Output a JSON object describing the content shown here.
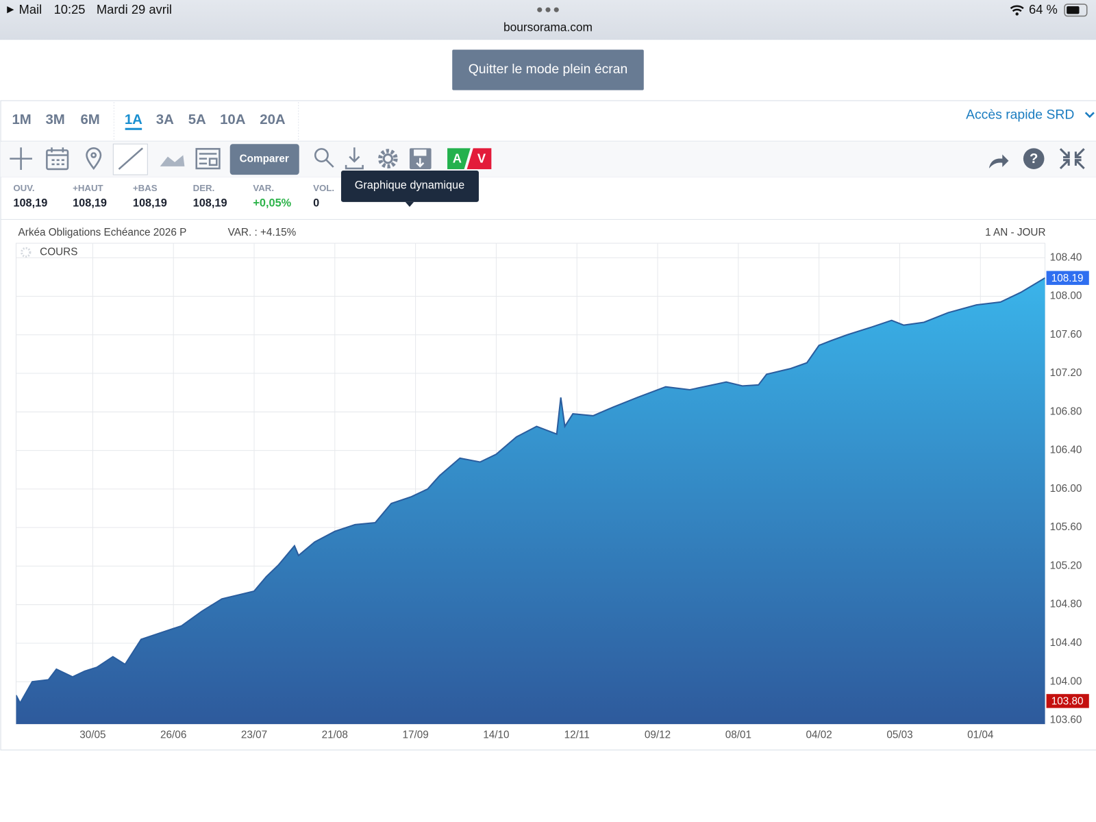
{
  "status_bar": {
    "back_app": "Mail",
    "time": "10:25",
    "date": "Mardi 29 avril",
    "url": "boursorama.com",
    "battery": "64 %"
  },
  "exit_fullscreen_button": "Quitter le mode plein écran",
  "periods": [
    {
      "label": "1M"
    },
    {
      "label": "3M"
    },
    {
      "label": "6M"
    },
    {
      "label": "1A",
      "selected": true
    },
    {
      "label": "3A"
    },
    {
      "label": "5A"
    },
    {
      "label": "10A"
    },
    {
      "label": "20A"
    }
  ],
  "quick_access": "Accès rapide SRD",
  "toolbar": {
    "compare_button": "Comparer",
    "buy": "A",
    "sell": "V",
    "tooltip": "Graphique dynamique"
  },
  "stats": [
    {
      "label": "OUV.",
      "value": "108,19"
    },
    {
      "label": "+HAUT",
      "value": "108,19"
    },
    {
      "label": "+BAS",
      "value": "108,19"
    },
    {
      "label": "DER.",
      "value": "108,19"
    },
    {
      "label": "VAR.",
      "value": "+0,05%",
      "color": "#2db34a"
    },
    {
      "label": "VOL.",
      "value": "0"
    }
  ],
  "chart_data": {
    "type": "area",
    "title": "Arkéa Obligations Echéance 2026 P",
    "subtitle": "VAR. : +4.15%",
    "period_label": "1 AN - JOUR",
    "x": [
      0,
      1,
      4,
      8,
      10,
      14,
      17,
      20,
      24,
      27,
      31,
      36,
      41,
      46,
      51,
      57,
      59,
      62,
      65,
      69,
      70,
      74,
      79,
      84,
      89,
      93,
      98,
      102,
      105,
      110,
      115,
      119,
      124,
      129,
      134,
      135,
      136,
      138,
      143,
      148,
      154,
      161,
      167,
      176,
      180,
      184,
      186,
      192,
      196,
      199,
      202,
      206,
      212,
      217,
      220,
      225,
      231,
      238,
      244,
      249,
      255
    ],
    "series": [
      {
        "name": "COURS",
        "color": "#2a5d9e",
        "fill_top": "#3ab4ea",
        "fill_bottom": "#2e5a9c",
        "values": [
          103.86,
          103.78,
          104.0,
          104.02,
          104.13,
          104.05,
          104.11,
          104.15,
          104.26,
          104.18,
          104.44,
          104.51,
          104.58,
          104.73,
          104.86,
          104.92,
          104.94,
          105.09,
          105.21,
          105.41,
          105.31,
          105.45,
          105.56,
          105.63,
          105.65,
          105.85,
          105.92,
          106.0,
          106.14,
          106.32,
          106.28,
          106.36,
          106.54,
          106.65,
          106.57,
          106.95,
          106.65,
          106.78,
          106.76,
          106.85,
          106.95,
          107.06,
          107.03,
          107.11,
          107.07,
          107.08,
          107.19,
          107.25,
          107.31,
          107.49,
          107.54,
          107.6,
          107.68,
          107.75,
          107.7,
          107.73,
          107.83,
          107.91,
          107.94,
          108.04,
          108.19
        ]
      }
    ],
    "xlim": [
      0,
      255
    ],
    "xticks": [
      {
        "value": 19,
        "label": "30/05"
      },
      {
        "value": 39,
        "label": "26/06"
      },
      {
        "value": 59,
        "label": "23/07"
      },
      {
        "value": 79,
        "label": "21/08"
      },
      {
        "value": 99,
        "label": "17/09"
      },
      {
        "value": 119,
        "label": "14/10"
      },
      {
        "value": 139,
        "label": "12/11"
      },
      {
        "value": 159,
        "label": "09/12"
      },
      {
        "value": 179,
        "label": "08/01"
      },
      {
        "value": 199,
        "label": "04/02"
      },
      {
        "value": 219,
        "label": "05/03"
      },
      {
        "value": 239,
        "label": "01/04"
      }
    ],
    "ylim": [
      103.56,
      108.55
    ],
    "yticks": [
      {
        "value": 103.6,
        "label": "103.60"
      },
      {
        "value": 104.0,
        "label": "104.00"
      },
      {
        "value": 104.4,
        "label": "104.40"
      },
      {
        "value": 104.8,
        "label": "104.80"
      },
      {
        "value": 105.2,
        "label": "105.20"
      },
      {
        "value": 105.6,
        "label": "105.60"
      },
      {
        "value": 106.0,
        "label": "106.00"
      },
      {
        "value": 106.4,
        "label": "106.40"
      },
      {
        "value": 106.8,
        "label": "106.80"
      },
      {
        "value": 107.2,
        "label": "107.20"
      },
      {
        "value": 107.6,
        "label": "107.60"
      },
      {
        "value": 108.0,
        "label": "108.00"
      },
      {
        "value": 108.4,
        "label": "108.40"
      }
    ],
    "price_markers": [
      {
        "value": 108.19,
        "label": "108.19",
        "color": "#2f6ff0"
      },
      {
        "value": 103.8,
        "label": "103.80",
        "color": "#c4100e"
      }
    ],
    "grid": true
  }
}
